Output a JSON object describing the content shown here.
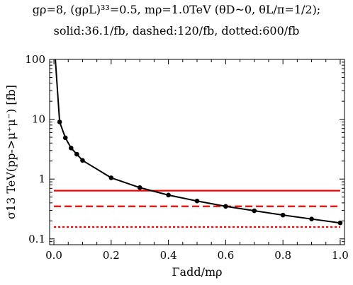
{
  "header": {
    "line1": "gρ=8, (gρL)³³=0.5, mρ=1.0TeV (θD~0, θL/π=1/2);",
    "line2": "solid:36.1/fb, dashed:120/fb, dotted:600/fb"
  },
  "chart_data": {
    "type": "line",
    "xlabel": "Γadd/mρ",
    "ylabel": "σ13 TeV(pp->μ⁺μ⁻) [fb]",
    "xlim": [
      0,
      1.0
    ],
    "ylim": [
      0.08,
      100
    ],
    "yscale": "log",
    "x_ticks": [
      "0.0",
      "0.2",
      "0.4",
      "0.6",
      "0.8",
      "1.0"
    ],
    "y_ticks": [
      "0.1",
      "1",
      "10",
      "100"
    ],
    "series": [
      {
        "style": "line-with-markers",
        "color": "#000000",
        "x": [
          0.005,
          0.02,
          0.04,
          0.06,
          0.08,
          0.1,
          0.2,
          0.3,
          0.4,
          0.5,
          0.6,
          0.7,
          0.8,
          0.9,
          1.0
        ],
        "y": [
          100,
          9.0,
          4.9,
          3.3,
          2.6,
          2.05,
          1.05,
          0.72,
          0.54,
          0.43,
          0.35,
          0.295,
          0.25,
          0.215,
          0.185
        ]
      }
    ],
    "limits": [
      {
        "luminosity": "36.1/fb",
        "style": "solid",
        "color": "#ff0000",
        "y": 0.64
      },
      {
        "luminosity": "120/fb",
        "style": "dashed",
        "color": "#ff0000",
        "y": 0.35
      },
      {
        "luminosity": "600/fb",
        "style": "dotted",
        "color": "#ff0000",
        "y": 0.158
      }
    ]
  }
}
